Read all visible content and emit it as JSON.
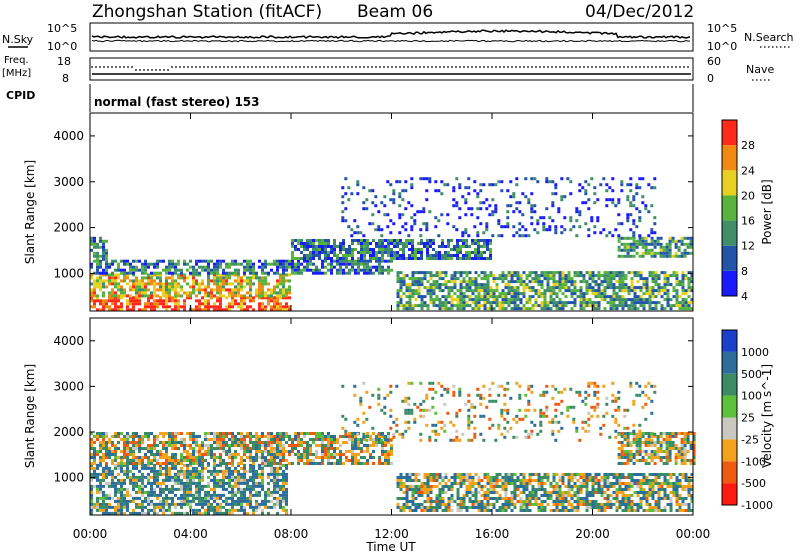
{
  "header": {
    "station": "Zhongshan Station (fitACF)",
    "beam": "Beam 06",
    "date": "04/Dec/2012"
  },
  "nsky_panel": {
    "left_label": "N.Sky",
    "right_label": "N.Search",
    "left_ticks": [
      "10^5",
      "10^0"
    ],
    "right_ticks": [
      "10^5",
      "10^0"
    ]
  },
  "freq_panel": {
    "left_label_top": "Freq.",
    "left_label_bottom": "[MHz]",
    "right_label": "Nave",
    "left_ticks": [
      "18",
      "8"
    ],
    "right_ticks": [
      "60",
      "0"
    ]
  },
  "cpid_panel": {
    "label": "CPID",
    "mode_text": "normal (fast stereo) 153"
  },
  "time_axis": {
    "ticks": [
      "00:00",
      "04:00",
      "08:00",
      "12:00",
      "16:00",
      "20:00",
      "00:00"
    ],
    "label": "Time UT"
  },
  "range_axis": {
    "label": "Slant Range [km]",
    "ticks": [
      "1000",
      "2000",
      "3000",
      "4000"
    ]
  },
  "power_colorbar": {
    "label": "Power [dB]",
    "ticks": [
      "4",
      "8",
      "12",
      "16",
      "20",
      "24",
      "28"
    ],
    "colors": [
      "#1a1aff",
      "#2255aa",
      "#3e8e6a",
      "#56b43c",
      "#e8d020",
      "#f08a10",
      "#ff2a1a"
    ]
  },
  "velocity_colorbar": {
    "label": "Velocity [m s^-1]",
    "ticks": [
      "1000",
      "500",
      "100",
      "25",
      "-25",
      "-100",
      "-500",
      "-1000"
    ],
    "colors": [
      "#1a3fc8",
      "#2b6e9a",
      "#3a8c64",
      "#5cc03a",
      "#c8c8c0",
      "#f4a21c",
      "#f05a10",
      "#ff1a10"
    ]
  },
  "chart_data": [
    {
      "type": "heatmap",
      "title": "Power",
      "xlabel": "Time UT",
      "ylabel": "Slant Range [km]",
      "xlim": [
        "00:00",
        "24:00"
      ],
      "ylim": [
        180,
        4500
      ],
      "colorbar_range_dB": [
        0,
        30
      ],
      "echo_bands": [
        {
          "t_start": 0.0,
          "t_end": 7.9,
          "range_lo": 180,
          "range_hi": 500,
          "value_dB": 27
        },
        {
          "t_start": 0.0,
          "t_end": 7.9,
          "range_lo": 500,
          "range_hi": 1000,
          "value_dB": 20
        },
        {
          "t_start": 0.0,
          "t_end": 12.0,
          "range_lo": 1000,
          "range_hi": 1300,
          "value_dB": 10
        },
        {
          "t_start": 0.0,
          "t_end": 0.7,
          "range_lo": 1300,
          "range_hi": 1800,
          "value_dB": 11
        },
        {
          "t_start": 8.0,
          "t_end": 15.9,
          "range_lo": 1300,
          "range_hi": 1750,
          "value_dB": 10
        },
        {
          "t_start": 12.2,
          "t_end": 24.0,
          "range_lo": 250,
          "range_hi": 1050,
          "value_dB": 13
        },
        {
          "t_start": 21.0,
          "t_end": 23.9,
          "range_lo": 1350,
          "range_hi": 1800,
          "value_dB": 13
        },
        {
          "t_start": 10.0,
          "t_end": 22.5,
          "range_lo": 1800,
          "range_hi": 3100,
          "value_dB": 6
        }
      ]
    },
    {
      "type": "heatmap",
      "title": "Velocity",
      "xlabel": "Time UT",
      "ylabel": "Slant Range [km]",
      "xlim": [
        "00:00",
        "24:00"
      ],
      "ylim": [
        180,
        4500
      ],
      "colorbar_range_ms": [
        -1000,
        1000
      ],
      "echo_bands": [
        {
          "t_start": 0.0,
          "t_end": 7.8,
          "range_lo": 200,
          "range_hi": 1300,
          "value_ms": 250
        },
        {
          "t_start": 0.0,
          "t_end": 12.0,
          "range_lo": 1300,
          "range_hi": 2000,
          "value_ms": 0
        },
        {
          "t_start": 12.2,
          "t_end": 24.0,
          "range_lo": 250,
          "range_hi": 1100,
          "value_ms": 100
        },
        {
          "t_start": 21.0,
          "t_end": 24.0,
          "range_lo": 1300,
          "range_hi": 2000,
          "value_ms": 0
        },
        {
          "t_start": 10.0,
          "t_end": 22.5,
          "range_lo": 1800,
          "range_hi": 3100,
          "value_ms": -50
        }
      ]
    }
  ]
}
